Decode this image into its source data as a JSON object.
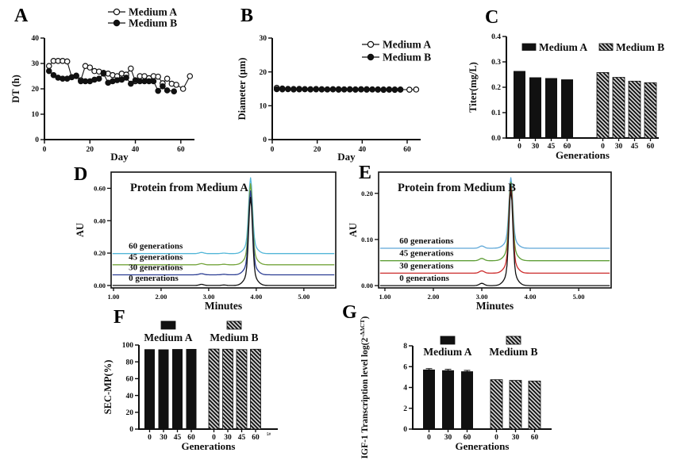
{
  "figure": {
    "background": "#ffffff"
  },
  "chart_data": [
    {
      "panel": "A",
      "type": "line",
      "xlabel": "Day",
      "ylabel": "DT (h)",
      "xlim": [
        0,
        66
      ],
      "ylim": [
        0,
        40
      ],
      "xticks": [
        0,
        20,
        40,
        60
      ],
      "yticks": [
        0,
        10,
        20,
        30,
        40
      ],
      "legend_position": "top-right-inside",
      "series": [
        {
          "name": "Medium A",
          "marker": "open",
          "color": "#111111",
          "x": [
            2,
            4,
            6,
            8,
            10,
            12,
            14,
            16,
            18,
            20,
            22,
            24,
            26,
            28,
            30,
            32,
            34,
            36,
            38,
            40,
            42,
            44,
            46,
            48,
            50,
            52,
            54,
            56,
            58,
            61,
            64
          ],
          "y": [
            29,
            31,
            31,
            31,
            30.8,
            24.6,
            25,
            23.4,
            29,
            28.4,
            27,
            26.8,
            26.3,
            26,
            25.4,
            25,
            26,
            25.6,
            28,
            23,
            25,
            25,
            24.2,
            25,
            24.8,
            22.2,
            24,
            22,
            21.6,
            20,
            25
          ]
        },
        {
          "name": "Medium B",
          "marker": "filled",
          "color": "#111111",
          "x": [
            2,
            4,
            6,
            8,
            10,
            12,
            14,
            16,
            18,
            20,
            22,
            24,
            26,
            28,
            30,
            32,
            34,
            36,
            38,
            40,
            42,
            44,
            46,
            48,
            50,
            52,
            54,
            57
          ],
          "y": [
            27,
            25.4,
            24.4,
            24,
            24,
            24.6,
            25.2,
            23,
            23,
            23,
            23.6,
            24,
            26,
            22.4,
            23,
            23.4,
            23.6,
            24.4,
            22,
            23.4,
            23,
            23,
            23,
            23,
            19.2,
            21,
            19.4,
            19
          ]
        }
      ]
    },
    {
      "panel": "B",
      "type": "line",
      "xlabel": "Day",
      "ylabel": "Diameter (µm)",
      "xlim": [
        0,
        66
      ],
      "ylim": [
        0,
        30
      ],
      "xticks": [
        0,
        20,
        40,
        60
      ],
      "yticks": [
        0,
        10,
        20,
        30
      ],
      "legend_position": "top-right-inside",
      "series": [
        {
          "name": "Medium A",
          "marker": "open",
          "color": "#111111",
          "x": [
            2,
            4.5,
            7,
            9.5,
            12,
            14.5,
            17,
            19.5,
            22,
            24.5,
            27,
            29.5,
            32,
            34.5,
            37,
            39.5,
            42,
            44.5,
            47,
            49.5,
            52,
            54.5,
            57,
            61,
            64
          ],
          "y": [
            15.3,
            15.1,
            15.0,
            14.95,
            15.0,
            14.9,
            14.9,
            14.95,
            14.9,
            14.85,
            14.9,
            14.9,
            14.85,
            14.9,
            14.85,
            14.9,
            14.9,
            14.85,
            14.85,
            14.8,
            14.85,
            14.8,
            14.8,
            14.75,
            14.8
          ]
        },
        {
          "name": "Medium B",
          "marker": "filled",
          "color": "#111111",
          "x": [
            2,
            4.5,
            7,
            9.5,
            12,
            14.5,
            17,
            19.5,
            22,
            24.5,
            27,
            29.5,
            32,
            34.5,
            37,
            39.5,
            42,
            44.5,
            47,
            49.5,
            52,
            54.5,
            57
          ],
          "y": [
            14.9,
            14.85,
            14.9,
            14.8,
            14.85,
            14.9,
            14.8,
            14.85,
            14.8,
            14.8,
            14.85,
            14.75,
            14.8,
            14.8,
            14.75,
            14.8,
            14.75,
            14.8,
            14.75,
            14.7,
            14.75,
            14.7,
            14.75
          ]
        }
      ]
    },
    {
      "panel": "C",
      "type": "bar",
      "xlabel": "Generations",
      "ylabel": "Titer(mg/L)",
      "ylim": [
        0,
        0.4
      ],
      "yticks": [
        "0.0",
        "0.1",
        "0.2",
        "0.3",
        "0.4"
      ],
      "categories": [
        "0",
        "30",
        "45",
        "60"
      ],
      "legend_style": "inline",
      "series": [
        {
          "name": "Medium A",
          "fill": "solid",
          "values": [
            0.264,
            0.239,
            0.236,
            0.231
          ]
        },
        {
          "name": "Medium B",
          "fill": "hatched",
          "values": [
            0.258,
            0.239,
            0.224,
            0.218
          ]
        }
      ]
    },
    {
      "panel": "D",
      "type": "chromatogram",
      "title": "Protein from Medium A",
      "xlabel": "Minutes",
      "ylabel": "AU",
      "xlim": [
        0.95,
        5.67
      ],
      "ylim": [
        -0.015,
        0.7
      ],
      "xticks": [
        "1.00",
        "2.00",
        "3.00",
        "4.00",
        "5.00"
      ],
      "yticks": [
        "0.00",
        "0.20",
        "0.40",
        "0.60"
      ],
      "peak_x": 3.88,
      "label_x": 1.32,
      "label_dy": 0.02,
      "bumps": [
        {
          "x": 2.85,
          "amp": 0.007
        },
        {
          "x": 3.32,
          "amp": 0.003
        }
      ],
      "traces": [
        {
          "label": "0  generations",
          "color": "#111111",
          "baseline": 0.0,
          "peak": 0.545
        },
        {
          "label": "30 generations",
          "color": "#2b3d93",
          "baseline": 0.066,
          "peak": 0.585
        },
        {
          "label": "45 generations",
          "color": "#74a43c",
          "baseline": 0.128,
          "peak": 0.628
        },
        {
          "label": "60 generations",
          "color": "#54b7d8",
          "baseline": 0.197,
          "peak": 0.665
        }
      ]
    },
    {
      "panel": "E",
      "type": "chromatogram",
      "title": "Protein from Medium B",
      "xlabel": "Minutes",
      "ylabel": "AU",
      "xlim": [
        0.87,
        5.67
      ],
      "ylim": [
        -0.005,
        0.246
      ],
      "xticks": [
        "1.00",
        "2.00",
        "3.00",
        "4.00",
        "5.00"
      ],
      "yticks": [
        "0.00",
        "0.10",
        "0.20"
      ],
      "peak_x": 3.6,
      "label_x": 1.3,
      "label_dy": 0.007,
      "bumps": [
        {
          "x": 3.0,
          "amp": 0.005
        }
      ],
      "traces": [
        {
          "label": "0  generations",
          "color": "#111111",
          "baseline": 0.0,
          "peak": 0.207
        },
        {
          "label": "30 generations",
          "color": "#cc2b2b",
          "baseline": 0.027,
          "peak": 0.215
        },
        {
          "label": "45 generations",
          "color": "#5f9e37",
          "baseline": 0.054,
          "peak": 0.224
        },
        {
          "label": "60 generations",
          "color": "#5fa8d8",
          "baseline": 0.081,
          "peak": 0.234
        }
      ]
    },
    {
      "panel": "F",
      "type": "bar",
      "xlabel": "Generations",
      "ylabel": "SEC-MP(%)",
      "ylim": [
        0,
        100
      ],
      "yticks": [
        0,
        20,
        40,
        60,
        80,
        100
      ],
      "categories": [
        "0",
        "30",
        "45",
        "60"
      ],
      "legend_style": "stacked",
      "footnote": "5#",
      "series": [
        {
          "name": "Medium A",
          "fill": "solid",
          "values": [
            95,
            94.8,
            95.2,
            95.3
          ]
        },
        {
          "name": "Medium B",
          "fill": "hatched",
          "values": [
            95.2,
            95,
            94.6,
            95
          ]
        }
      ]
    },
    {
      "panel": "G",
      "type": "bar",
      "xlabel": "Generations",
      "ylabel": "IGF-1 Transcription level log(2-ΔΔCT)",
      "ylabel_parts": {
        "pre": "IGF-1 Transcription level log(2",
        "sup": "-ΔΔCT",
        "post": ")"
      },
      "ylim": [
        0,
        8
      ],
      "yticks": [
        0,
        2,
        4,
        6,
        8
      ],
      "categories": [
        "0",
        "30",
        "60"
      ],
      "legend_style": "stacked",
      "series": [
        {
          "name": "Medium A",
          "fill": "solid",
          "values": [
            5.72,
            5.65,
            5.55
          ],
          "errors": [
            0.09,
            0.09,
            0.09
          ]
        },
        {
          "name": "Medium B",
          "fill": "hatched",
          "values": [
            4.75,
            4.68,
            4.62
          ]
        }
      ]
    }
  ]
}
